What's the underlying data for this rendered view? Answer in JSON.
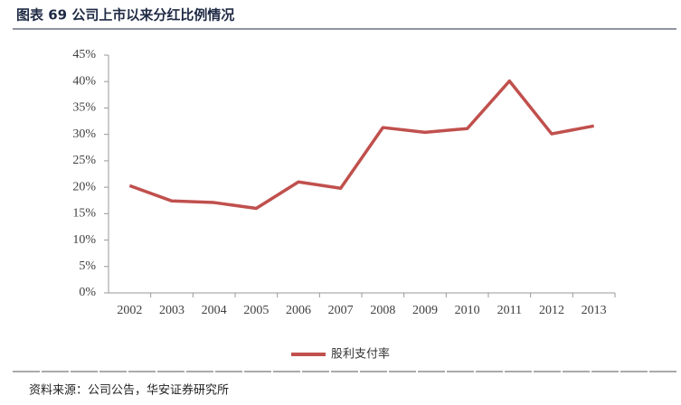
{
  "title": "图表 69 公司上市以来分红比例情况",
  "source": "资料来源：公司公告，华安证券研究所",
  "chart_data": {
    "type": "line",
    "categories": [
      "2002",
      "2003",
      "2004",
      "2005",
      "2006",
      "2007",
      "2008",
      "2009",
      "2010",
      "2011",
      "2012",
      "2013"
    ],
    "series": [
      {
        "name": "股利支付率",
        "color": "#c0504d",
        "values": [
          20.3,
          17.4,
          17.1,
          16.0,
          21.0,
          19.8,
          31.3,
          30.4,
          31.1,
          40.1,
          30.1,
          31.6
        ]
      }
    ],
    "ylim": [
      0,
      45
    ],
    "yticks": [
      {
        "value": 0,
        "label": "0%"
      },
      {
        "value": 5,
        "label": "5%"
      },
      {
        "value": 10,
        "label": "10%"
      },
      {
        "value": 15,
        "label": "15%"
      },
      {
        "value": 20,
        "label": "20%"
      },
      {
        "value": 25,
        "label": "25%"
      },
      {
        "value": 30,
        "label": "30%"
      },
      {
        "value": 35,
        "label": "35%"
      },
      {
        "value": 40,
        "label": "40%"
      },
      {
        "value": 45,
        "label": "45%"
      }
    ],
    "legend": "bottom"
  }
}
